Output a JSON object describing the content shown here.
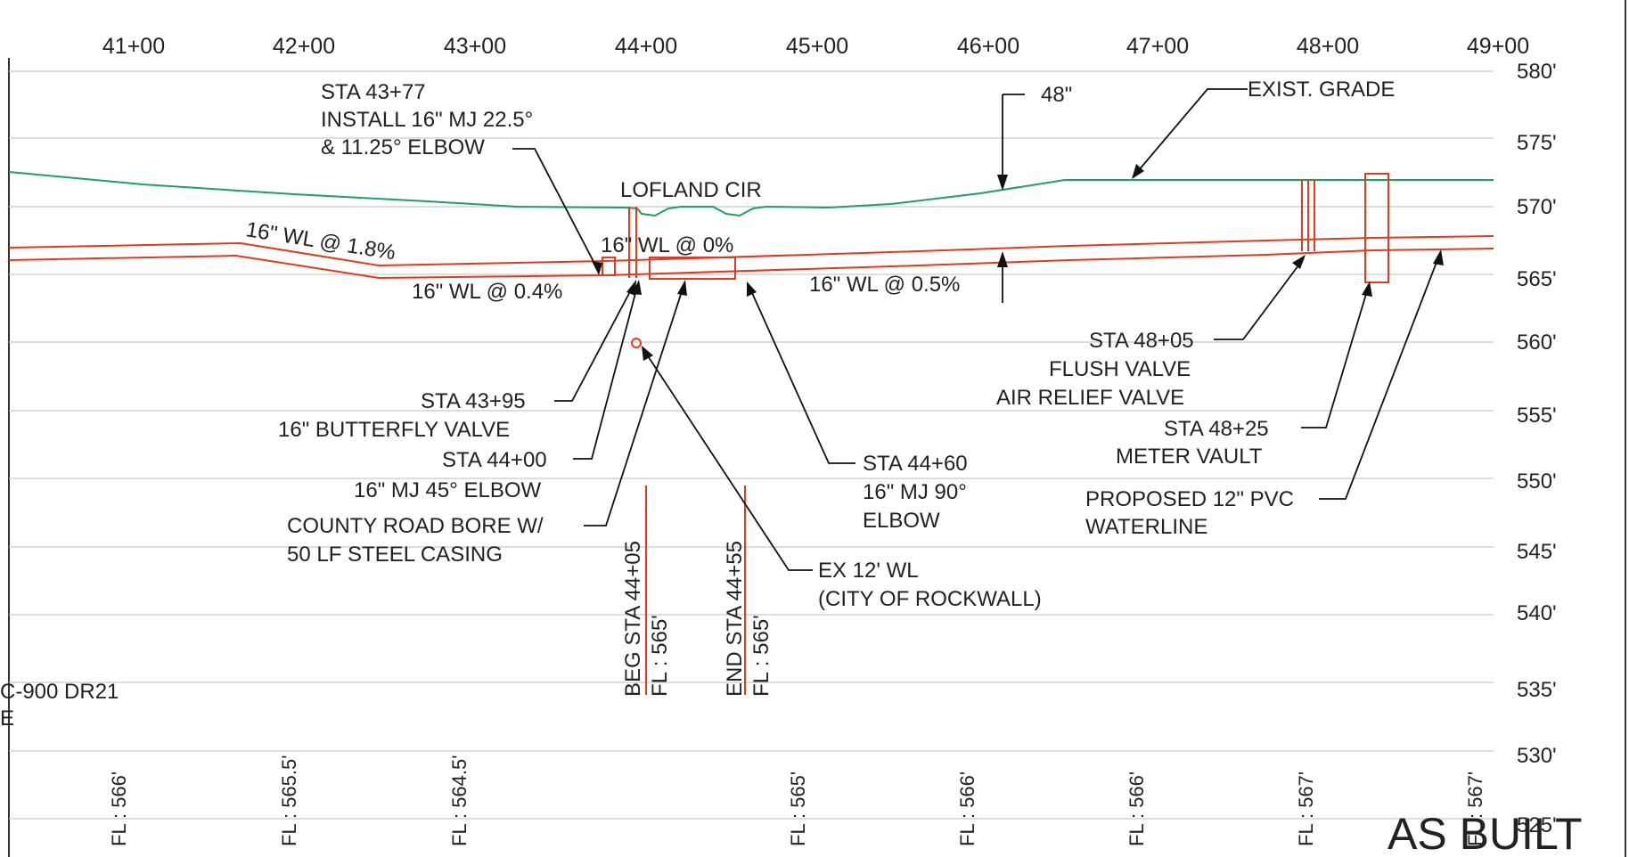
{
  "stations": [
    "41+00",
    "42+00",
    "43+00",
    "44+00",
    "45+00",
    "46+00",
    "47+00",
    "48+00",
    "49+00"
  ],
  "elevations": [
    "580'",
    "575'",
    "570'",
    "565'",
    "560'",
    "555'",
    "550'",
    "545'",
    "540'",
    "535'",
    "530'",
    "525'"
  ],
  "flowlines": [
    "FL : 566'",
    "FL : 565.5'",
    "FL : 564.5'",
    "FL : 565'",
    "FL : 566'",
    "FL : 566'",
    "FL : 567'",
    "FL : 567'"
  ],
  "labels": {
    "sta4377": [
      "STA 43+77",
      "INSTALL 16\" MJ 22.5°",
      "& 11.25° ELBOW"
    ],
    "lofland": "LOFLAND CIR",
    "cover": "48\"",
    "grade": "EXIST. GRADE",
    "wl18": "16\" WL @ 1.8%",
    "wl04": "16\" WL @ 0.4%",
    "wl0": "16\" WL @ 0%",
    "wl05": "16\" WL @ 0.5%",
    "sta4805": [
      "STA 48+05",
      "FLUSH VALVE",
      "AIR RELIEF VALVE"
    ],
    "sta4825": [
      "STA 48+25",
      "METER VAULT"
    ],
    "pvc": [
      "PROPOSED 12\" PVC",
      "WATERLINE"
    ],
    "sta4395": [
      "STA 43+95",
      "16\" BUTTERFLY VALVE"
    ],
    "sta4400": [
      "STA 44+00",
      "16\" MJ 45° ELBOW"
    ],
    "bore": [
      "COUNTY ROAD BORE W/",
      "50 LF STEEL CASING"
    ],
    "sta4460": [
      "STA 44+60",
      "16\" MJ 90°",
      "ELBOW"
    ],
    "exwl": [
      "EX 12' WL",
      "(CITY OF ROCKWALL)"
    ],
    "beg": [
      "BEG STA 44+05",
      "FL : 565'"
    ],
    "end": [
      "END STA 44+55",
      "FL : 565'"
    ],
    "leftnote": [
      "C-900 DR21",
      "E"
    ],
    "stamp": "AS BUILT"
  },
  "colors": {
    "pipe": "#e23a1e",
    "grade": "#1aa260",
    "grid": "#c9c9c9",
    "ink": "#222222"
  }
}
